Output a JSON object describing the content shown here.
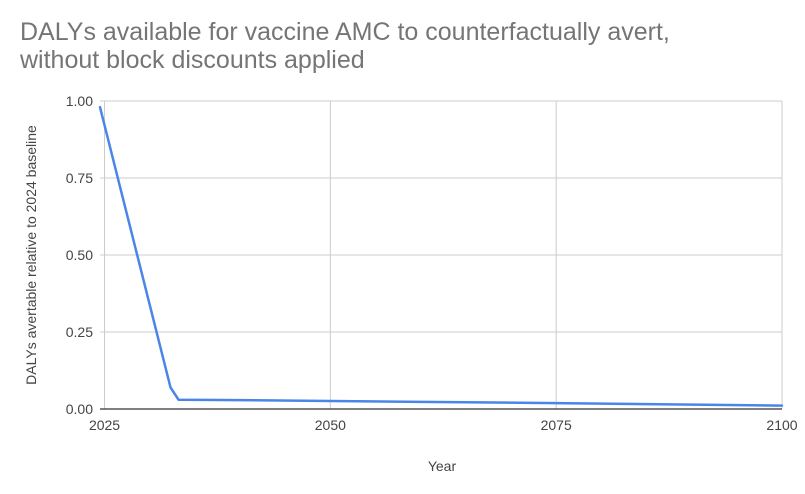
{
  "chart_data": {
    "type": "line",
    "title": "DALYs available for vaccine AMC to counterfactually avert, without block discounts applied",
    "title_lines": [
      "DALYs available for vaccine AMC to counterfactually avert,",
      "without block discounts applied"
    ],
    "xlabel": "Year",
    "ylabel": "DALYs avertable relative to 2024 baseline",
    "xlim": [
      2024.5,
      2100
    ],
    "ylim": [
      0,
      1
    ],
    "x_ticks": [
      2025,
      2050,
      2075,
      2100
    ],
    "x_tick_labels": [
      "2025",
      "2050",
      "2075",
      "2100"
    ],
    "y_ticks": [
      0,
      0.25,
      0.5,
      0.75,
      1
    ],
    "y_tick_labels": [
      "0.00",
      "0.25",
      "0.50",
      "0.75",
      "1.00"
    ],
    "grid": true,
    "legend": "none",
    "series": [
      {
        "color": "#4a86e8",
        "x": [
          2024.5,
          2032.3,
          2033.2,
          2040,
          2050,
          2060,
          2075,
          2085,
          2100
        ],
        "y": [
          0.98,
          0.07,
          0.03,
          0.029,
          0.026,
          0.023,
          0.019,
          0.016,
          0.011
        ]
      }
    ]
  }
}
